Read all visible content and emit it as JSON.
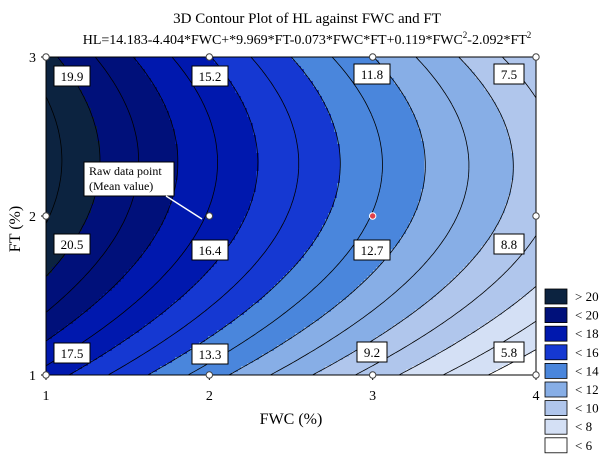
{
  "chart_data": {
    "type": "contour",
    "title": "3D Contour Plot of HL against FWC and FT",
    "equation_text": "HL=14.183-4.404*FWC+*9.969*FT-0.073*FWC*FT+0.119*FWC",
    "equation_sup1": "2",
    "equation_mid": "-2.092*FT",
    "equation_sup2": "2",
    "equation": {
      "c0": 14.183,
      "c_fwc": -4.404,
      "c_ft": 9.969,
      "c_fwc_ft": -0.073,
      "c_fwc2": 0.119,
      "c_ft2": -2.092
    },
    "xlabel": "FWC (%)",
    "ylabel": "FT (%)",
    "xlim": [
      1,
      4
    ],
    "ylim": [
      1,
      3
    ],
    "xticks": [
      "1",
      "2",
      "3",
      "4"
    ],
    "yticks": [
      "1",
      "2",
      "3"
    ],
    "levels": [
      6,
      8,
      10,
      12,
      14,
      16,
      18,
      20
    ],
    "legend": [
      {
        "label": "> 20",
        "color": "#0c2340"
      },
      {
        "label": "< 20",
        "color": "#00107a"
      },
      {
        "label": "< 18",
        "color": "#0018ae"
      },
      {
        "label": "< 16",
        "color": "#1538d2"
      },
      {
        "label": "< 14",
        "color": "#4a86dc"
      },
      {
        "label": "< 12",
        "color": "#87aee6"
      },
      {
        "label": "< 10",
        "color": "#b0c6ec"
      },
      {
        "label": "< 8",
        "color": "#d4e0f5"
      },
      {
        "label": "< 6",
        "color": "#ffffff"
      }
    ],
    "data_points": [
      {
        "fwc": 1,
        "ft": 3,
        "value": "19.9",
        "hl": 19.9
      },
      {
        "fwc": 2,
        "ft": 3,
        "value": "15.2",
        "hl": 15.2
      },
      {
        "fwc": 3,
        "ft": 3,
        "value": "11.8",
        "hl": 11.8
      },
      {
        "fwc": 4,
        "ft": 3,
        "value": "7.5",
        "hl": 7.5
      },
      {
        "fwc": 1,
        "ft": 2,
        "value": "20.5",
        "hl": 20.5
      },
      {
        "fwc": 2,
        "ft": 2,
        "value": "16.4",
        "hl": 16.4
      },
      {
        "fwc": 3,
        "ft": 2,
        "value": "12.7",
        "hl": 12.7
      },
      {
        "fwc": 4,
        "ft": 2,
        "value": "8.8",
        "hl": 8.8
      },
      {
        "fwc": 1,
        "ft": 1,
        "value": "17.5",
        "hl": 17.5
      },
      {
        "fwc": 2,
        "ft": 1,
        "value": "13.3",
        "hl": 13.3
      },
      {
        "fwc": 3,
        "ft": 1,
        "value": "9.2",
        "hl": 9.2
      },
      {
        "fwc": 4,
        "ft": 1,
        "value": "5.8",
        "hl": 5.8
      }
    ],
    "highlighted_point": {
      "fwc": 3,
      "ft": 2,
      "color": "#e0404a"
    },
    "annotation": {
      "line1": "Raw data point",
      "line2": "(Mean value)",
      "points_to": {
        "fwc": 2,
        "ft": 2
      }
    },
    "legend_placement": "right",
    "grid": false
  }
}
